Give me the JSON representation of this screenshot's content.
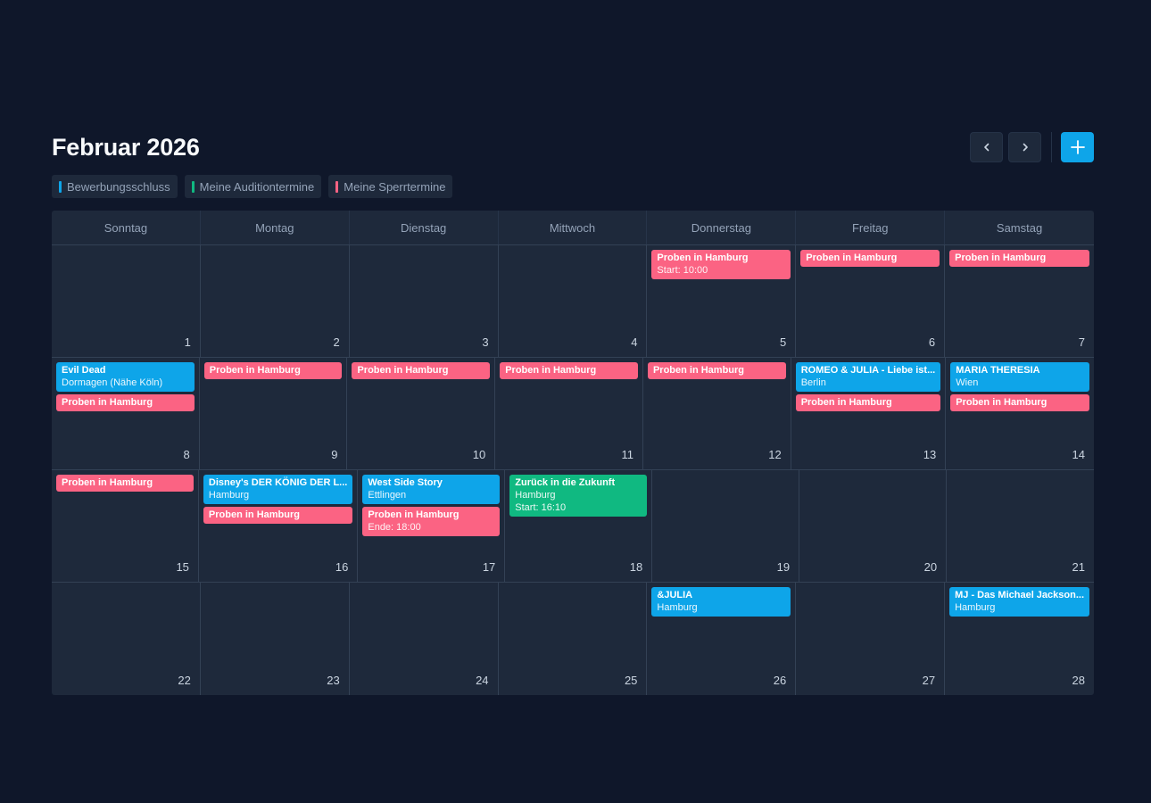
{
  "title": "Februar 2026",
  "colors": {
    "red": "#fb6383",
    "blue": "#0ea5e9",
    "green": "#10b981"
  },
  "nav": {
    "prev_icon": "chevron-left-icon",
    "next_icon": "chevron-right-icon",
    "add_icon": "plus-icon"
  },
  "legend": [
    {
      "label": "Bewerbungsschluss",
      "color": "#0ea5e9"
    },
    {
      "label": "Meine Auditiontermine",
      "color": "#10b981"
    },
    {
      "label": "Meine Sperrtermine",
      "color": "#fb6383"
    }
  ],
  "weekdays": [
    "Sonntag",
    "Montag",
    "Dienstag",
    "Mittwoch",
    "Donnerstag",
    "Freitag",
    "Samstag"
  ],
  "weeks": [
    [
      {
        "day": "1",
        "events": []
      },
      {
        "day": "2",
        "events": []
      },
      {
        "day": "3",
        "events": []
      },
      {
        "day": "4",
        "events": []
      },
      {
        "day": "5",
        "events": [
          {
            "type": "red",
            "title": "Proben in Hamburg",
            "lines": [
              "Start: 10:00"
            ]
          }
        ]
      },
      {
        "day": "6",
        "events": [
          {
            "type": "red",
            "title": "Proben in Hamburg",
            "lines": []
          }
        ]
      },
      {
        "day": "7",
        "events": [
          {
            "type": "red",
            "title": "Proben in Hamburg",
            "lines": []
          }
        ]
      }
    ],
    [
      {
        "day": "8",
        "events": [
          {
            "type": "blue",
            "title": "Evil Dead",
            "lines": [
              "Dormagen (Nähe Köln)"
            ]
          },
          {
            "type": "red",
            "title": "Proben in Hamburg",
            "lines": []
          }
        ]
      },
      {
        "day": "9",
        "events": [
          {
            "type": "red",
            "title": "Proben in Hamburg",
            "lines": []
          }
        ]
      },
      {
        "day": "10",
        "events": [
          {
            "type": "red",
            "title": "Proben in Hamburg",
            "lines": []
          }
        ]
      },
      {
        "day": "11",
        "events": [
          {
            "type": "red",
            "title": "Proben in Hamburg",
            "lines": []
          }
        ]
      },
      {
        "day": "12",
        "events": [
          {
            "type": "red",
            "title": "Proben in Hamburg",
            "lines": []
          }
        ]
      },
      {
        "day": "13",
        "events": [
          {
            "type": "blue",
            "title": "ROMEO & JULIA - Liebe ist...",
            "lines": [
              "Berlin"
            ]
          },
          {
            "type": "red",
            "title": "Proben in Hamburg",
            "lines": []
          }
        ]
      },
      {
        "day": "14",
        "events": [
          {
            "type": "blue",
            "title": "MARIA THERESIA",
            "lines": [
              "Wien"
            ]
          },
          {
            "type": "red",
            "title": "Proben in Hamburg",
            "lines": []
          }
        ]
      }
    ],
    [
      {
        "day": "15",
        "events": [
          {
            "type": "red",
            "title": "Proben in Hamburg",
            "lines": []
          }
        ]
      },
      {
        "day": "16",
        "events": [
          {
            "type": "blue",
            "title": "Disney's DER KÖNIG DER L...",
            "lines": [
              "Hamburg"
            ]
          },
          {
            "type": "red",
            "title": "Proben in Hamburg",
            "lines": []
          }
        ]
      },
      {
        "day": "17",
        "events": [
          {
            "type": "blue",
            "title": "West Side Story",
            "lines": [
              "Ettlingen"
            ]
          },
          {
            "type": "red",
            "title": "Proben in Hamburg",
            "lines": [
              "Ende: 18:00"
            ]
          }
        ]
      },
      {
        "day": "18",
        "events": [
          {
            "type": "green",
            "title": "Zurück in die Zukunft",
            "lines": [
              "Hamburg",
              "Start: 16:10"
            ]
          }
        ]
      },
      {
        "day": "19",
        "events": []
      },
      {
        "day": "20",
        "events": []
      },
      {
        "day": "21",
        "events": []
      }
    ],
    [
      {
        "day": "22",
        "events": []
      },
      {
        "day": "23",
        "events": []
      },
      {
        "day": "24",
        "events": []
      },
      {
        "day": "25",
        "events": []
      },
      {
        "day": "26",
        "events": [
          {
            "type": "blue",
            "title": "&JULIA",
            "lines": [
              "Hamburg"
            ]
          }
        ]
      },
      {
        "day": "27",
        "events": []
      },
      {
        "day": "28",
        "events": [
          {
            "type": "blue",
            "title": "MJ - Das Michael Jackson...",
            "lines": [
              "Hamburg"
            ]
          }
        ]
      }
    ]
  ]
}
